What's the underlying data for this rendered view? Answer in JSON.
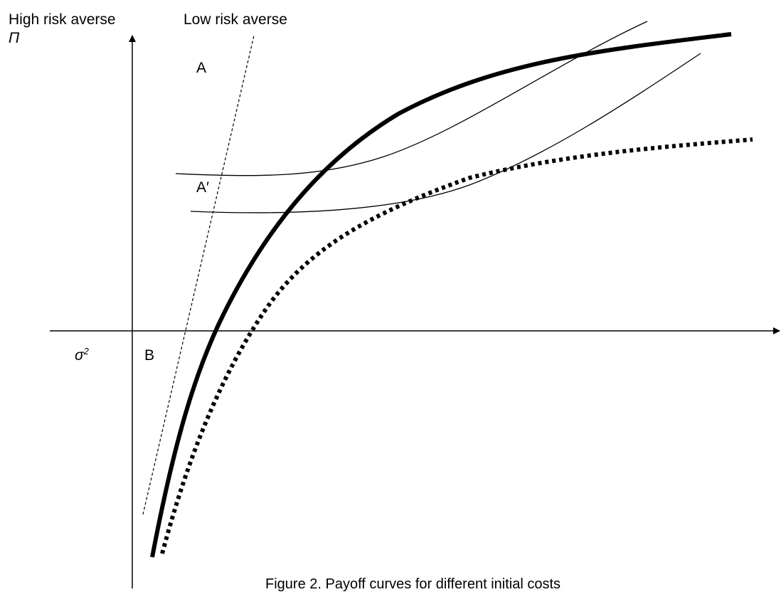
{
  "labels": {
    "high_risk_averse": "High risk averse",
    "low_risk_averse": "Low risk averse",
    "pi_symbol": "Π",
    "point_a": "A",
    "point_a_prime": "A′",
    "point_b": "B",
    "sigma_base": "σ",
    "sigma_exp": "2"
  },
  "caption": "Figure 2. Payoff curves for different initial costs",
  "colors": {
    "ink": "#000000",
    "background": "#ffffff"
  }
}
